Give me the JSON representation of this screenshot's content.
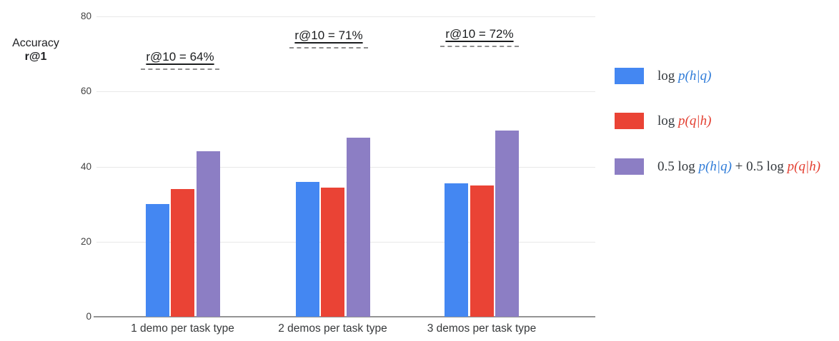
{
  "chart_data": {
    "type": "bar",
    "title": "",
    "ylabel_lines": [
      "Accuracy",
      "r@1"
    ],
    "ylim": [
      0,
      80
    ],
    "y_ticks": [
      0,
      20,
      40,
      60,
      80
    ],
    "grid": true,
    "legend_position": "right",
    "categories": [
      "1 demo per task type",
      "2 demos per task type",
      "3 demos per task type"
    ],
    "series": [
      {
        "name": "log p(h|q)",
        "color": "#4487f2",
        "values": [
          30.0,
          35.9,
          35.6
        ]
      },
      {
        "name": "log p(q|h)",
        "color": "#ea4335",
        "values": [
          34.0,
          34.3,
          34.9
        ]
      },
      {
        "name": "0.5 log p(h|q) + 0.5 log p(q|h)",
        "color": "#8c7ec4",
        "values": [
          44.1,
          47.7,
          49.6
        ]
      }
    ],
    "annotations": [
      {
        "label": "r@10 = 64%"
      },
      {
        "label": "r@10 = 71%"
      },
      {
        "label": "r@10 = 72%"
      }
    ]
  },
  "legend": {
    "items": [
      {
        "swatch_color": "#4487f2",
        "parts": [
          {
            "text": "log ",
            "color": "#33383d",
            "italic": false
          },
          {
            "text": "p(h|q)",
            "color": "#2e7bd8",
            "italic": true
          }
        ]
      },
      {
        "swatch_color": "#ea4335",
        "parts": [
          {
            "text": "log ",
            "color": "#33383d",
            "italic": false
          },
          {
            "text": "p(q|h)",
            "color": "#e33e30",
            "italic": true
          }
        ]
      },
      {
        "swatch_color": "#8c7ec4",
        "parts": [
          {
            "text": "0.5 log ",
            "color": "#33383d",
            "italic": false
          },
          {
            "text": "p(h|q)",
            "color": "#2e7bd8",
            "italic": true
          },
          {
            "text": " + 0.5 log ",
            "color": "#33383d",
            "italic": false
          },
          {
            "text": "p(q|h)",
            "color": "#e33e30",
            "italic": true
          }
        ]
      }
    ]
  },
  "colors": {
    "grid": "#e8e8e8",
    "axis": "#949494",
    "dash_line": "#8f8f8f",
    "text_dark": "#202124"
  }
}
